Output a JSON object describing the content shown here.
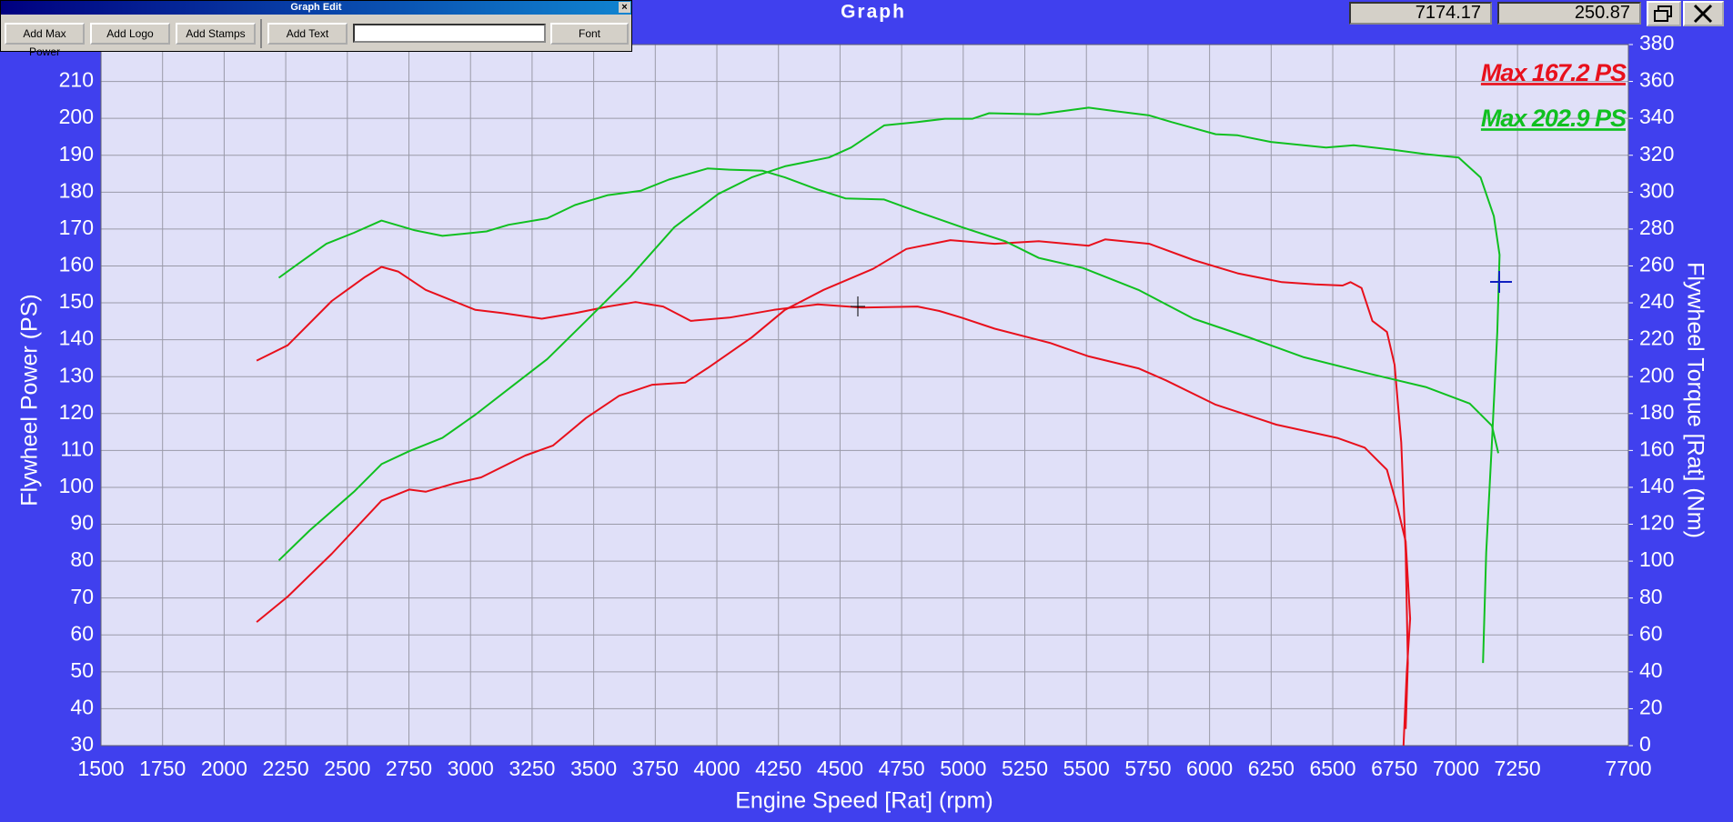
{
  "window": {
    "title": "Graph",
    "readouts": [
      "7174.17",
      "250.87"
    ]
  },
  "toolbar": {
    "title": "Graph Edit",
    "buttons": [
      "Add Max Power",
      "Add Logo",
      "Add Stamps",
      "Add Text",
      "Font"
    ]
  },
  "chart_data": {
    "type": "line",
    "xlabel": "Engine Speed [Rat] (rpm)",
    "ylabel": "Flywheel Power (PS)",
    "y2label": "Flywheel Torque [Rat] (Nm)",
    "xlim": [
      1500,
      7700
    ],
    "xticks": [
      1500,
      1750,
      2000,
      2250,
      2500,
      2750,
      3000,
      3250,
      3500,
      3750,
      4000,
      4250,
      4500,
      4750,
      5000,
      5250,
      5500,
      5750,
      6000,
      6250,
      6500,
      6750,
      7000,
      7250,
      7700
    ],
    "ylim": [
      30,
      220
    ],
    "yticks": [
      30,
      40,
      50,
      60,
      70,
      80,
      90,
      100,
      110,
      120,
      130,
      140,
      150,
      160,
      170,
      180,
      190,
      200,
      210
    ],
    "y2lim": [
      0,
      380
    ],
    "y2ticks": [
      0,
      20,
      40,
      60,
      80,
      100,
      120,
      140,
      160,
      180,
      200,
      220,
      240,
      260,
      280,
      300,
      320,
      340,
      360,
      380
    ],
    "grid": true,
    "annotations": [
      {
        "text": "Max 167.2 PS",
        "color": "#e8101c"
      },
      {
        "text": "Max 202.9 PS",
        "color": "#10c020"
      }
    ],
    "series": [
      {
        "color": "#e8101c",
        "x": [
          2132,
          2258,
          2437,
          2639,
          2751,
          2818,
          2930,
          3043,
          3222,
          3334,
          3469,
          3603,
          3738,
          3872,
          3962,
          4141,
          4276,
          4433,
          4634,
          4769,
          4948,
          5128,
          5307,
          5509,
          5576,
          5755,
          5935,
          6114,
          6294,
          6428,
          6540,
          6572,
          6617,
          6661,
          6720,
          6751,
          6778,
          6796,
          6805,
          6796
        ],
        "values": [
          63.5,
          70.4,
          82,
          96.4,
          99.4,
          98.8,
          101,
          102.7,
          108.6,
          111.3,
          118.8,
          124.8,
          127.8,
          128.4,
          132.3,
          140.6,
          148.1,
          153.5,
          159.2,
          164.6,
          167,
          166,
          166.7,
          165.5,
          167.2,
          166,
          161.6,
          158,
          155.6,
          155,
          154.7,
          155.6,
          154,
          145.1,
          142.1,
          133.2,
          112.2,
          82.3,
          52.4,
          34.5
        ]
      },
      {
        "color": "#e8101c",
        "axis": "y2",
        "x": [
          2132,
          2258,
          2437,
          2572,
          2639,
          2706,
          2818,
          2886,
          3020,
          3132,
          3289,
          3424,
          3558,
          3670,
          3782,
          3894,
          4051,
          4231,
          4410,
          4589,
          4814,
          4903,
          4993,
          5128,
          5352,
          5509,
          5711,
          5823,
          6025,
          6271,
          6518,
          6630,
          6720,
          6764,
          6796,
          6814,
          6800,
          6787
        ],
        "values": [
          208.7,
          217,
          241,
          254,
          259.5,
          257,
          247,
          243.4,
          236.2,
          234.4,
          231.4,
          234.4,
          238,
          240.4,
          238,
          230.2,
          232,
          236.2,
          239.2,
          237.4,
          238,
          235.6,
          232,
          226,
          218.3,
          211,
          204.5,
          198,
          184.8,
          174,
          166.8,
          161.5,
          149.5,
          128.6,
          110.6,
          68.8,
          38.9,
          0
        ]
      },
      {
        "color": "#10c020",
        "x": [
          2222,
          2347,
          2527,
          2639,
          2751,
          2886,
          3020,
          3177,
          3311,
          3469,
          3648,
          3827,
          4006,
          4141,
          4276,
          4455,
          4545,
          4679,
          4814,
          4926,
          5038,
          5105,
          5307,
          5509,
          5621,
          5755,
          5845,
          6025,
          6114,
          6249,
          6473,
          6585,
          6742,
          6877,
          7011,
          7100,
          7154,
          7177,
          7168,
          7146,
          7123,
          7110
        ],
        "values": [
          80.2,
          88.3,
          98.8,
          106.3,
          109.8,
          113.4,
          119.7,
          127.8,
          134.7,
          145.1,
          157,
          170.5,
          179.5,
          184,
          187,
          189.4,
          192.1,
          198.1,
          199,
          199.9,
          199.9,
          201.4,
          201.1,
          202.9,
          201.9,
          200.8,
          199,
          195.7,
          195.4,
          193.6,
          192.1,
          192.7,
          191.5,
          190.3,
          189.4,
          184,
          173.5,
          163,
          142.1,
          112.2,
          82.3,
          52.4
        ]
      },
      {
        "color": "#10c020",
        "axis": "y2",
        "x": [
          2222,
          2302,
          2415,
          2527,
          2639,
          2774,
          2886,
          3065,
          3155,
          3311,
          3424,
          3558,
          3692,
          3805,
          3962,
          4051,
          4186,
          4276,
          4410,
          4522,
          4679,
          4814,
          4993,
          5172,
          5307,
          5486,
          5711,
          5935,
          6159,
          6383,
          6652,
          6877,
          7056,
          7146,
          7172
        ],
        "values": [
          253.6,
          261.3,
          272,
          278,
          284.6,
          279.3,
          276.3,
          278.7,
          282.3,
          285.8,
          293,
          298.4,
          300.8,
          306.8,
          312.8,
          312.2,
          311.6,
          308,
          301.4,
          296.6,
          296,
          289.4,
          281.1,
          273.3,
          264.3,
          258.9,
          247,
          231.4,
          221.3,
          210.5,
          201.5,
          194.4,
          185.4,
          173.4,
          158.5
        ]
      }
    ]
  }
}
